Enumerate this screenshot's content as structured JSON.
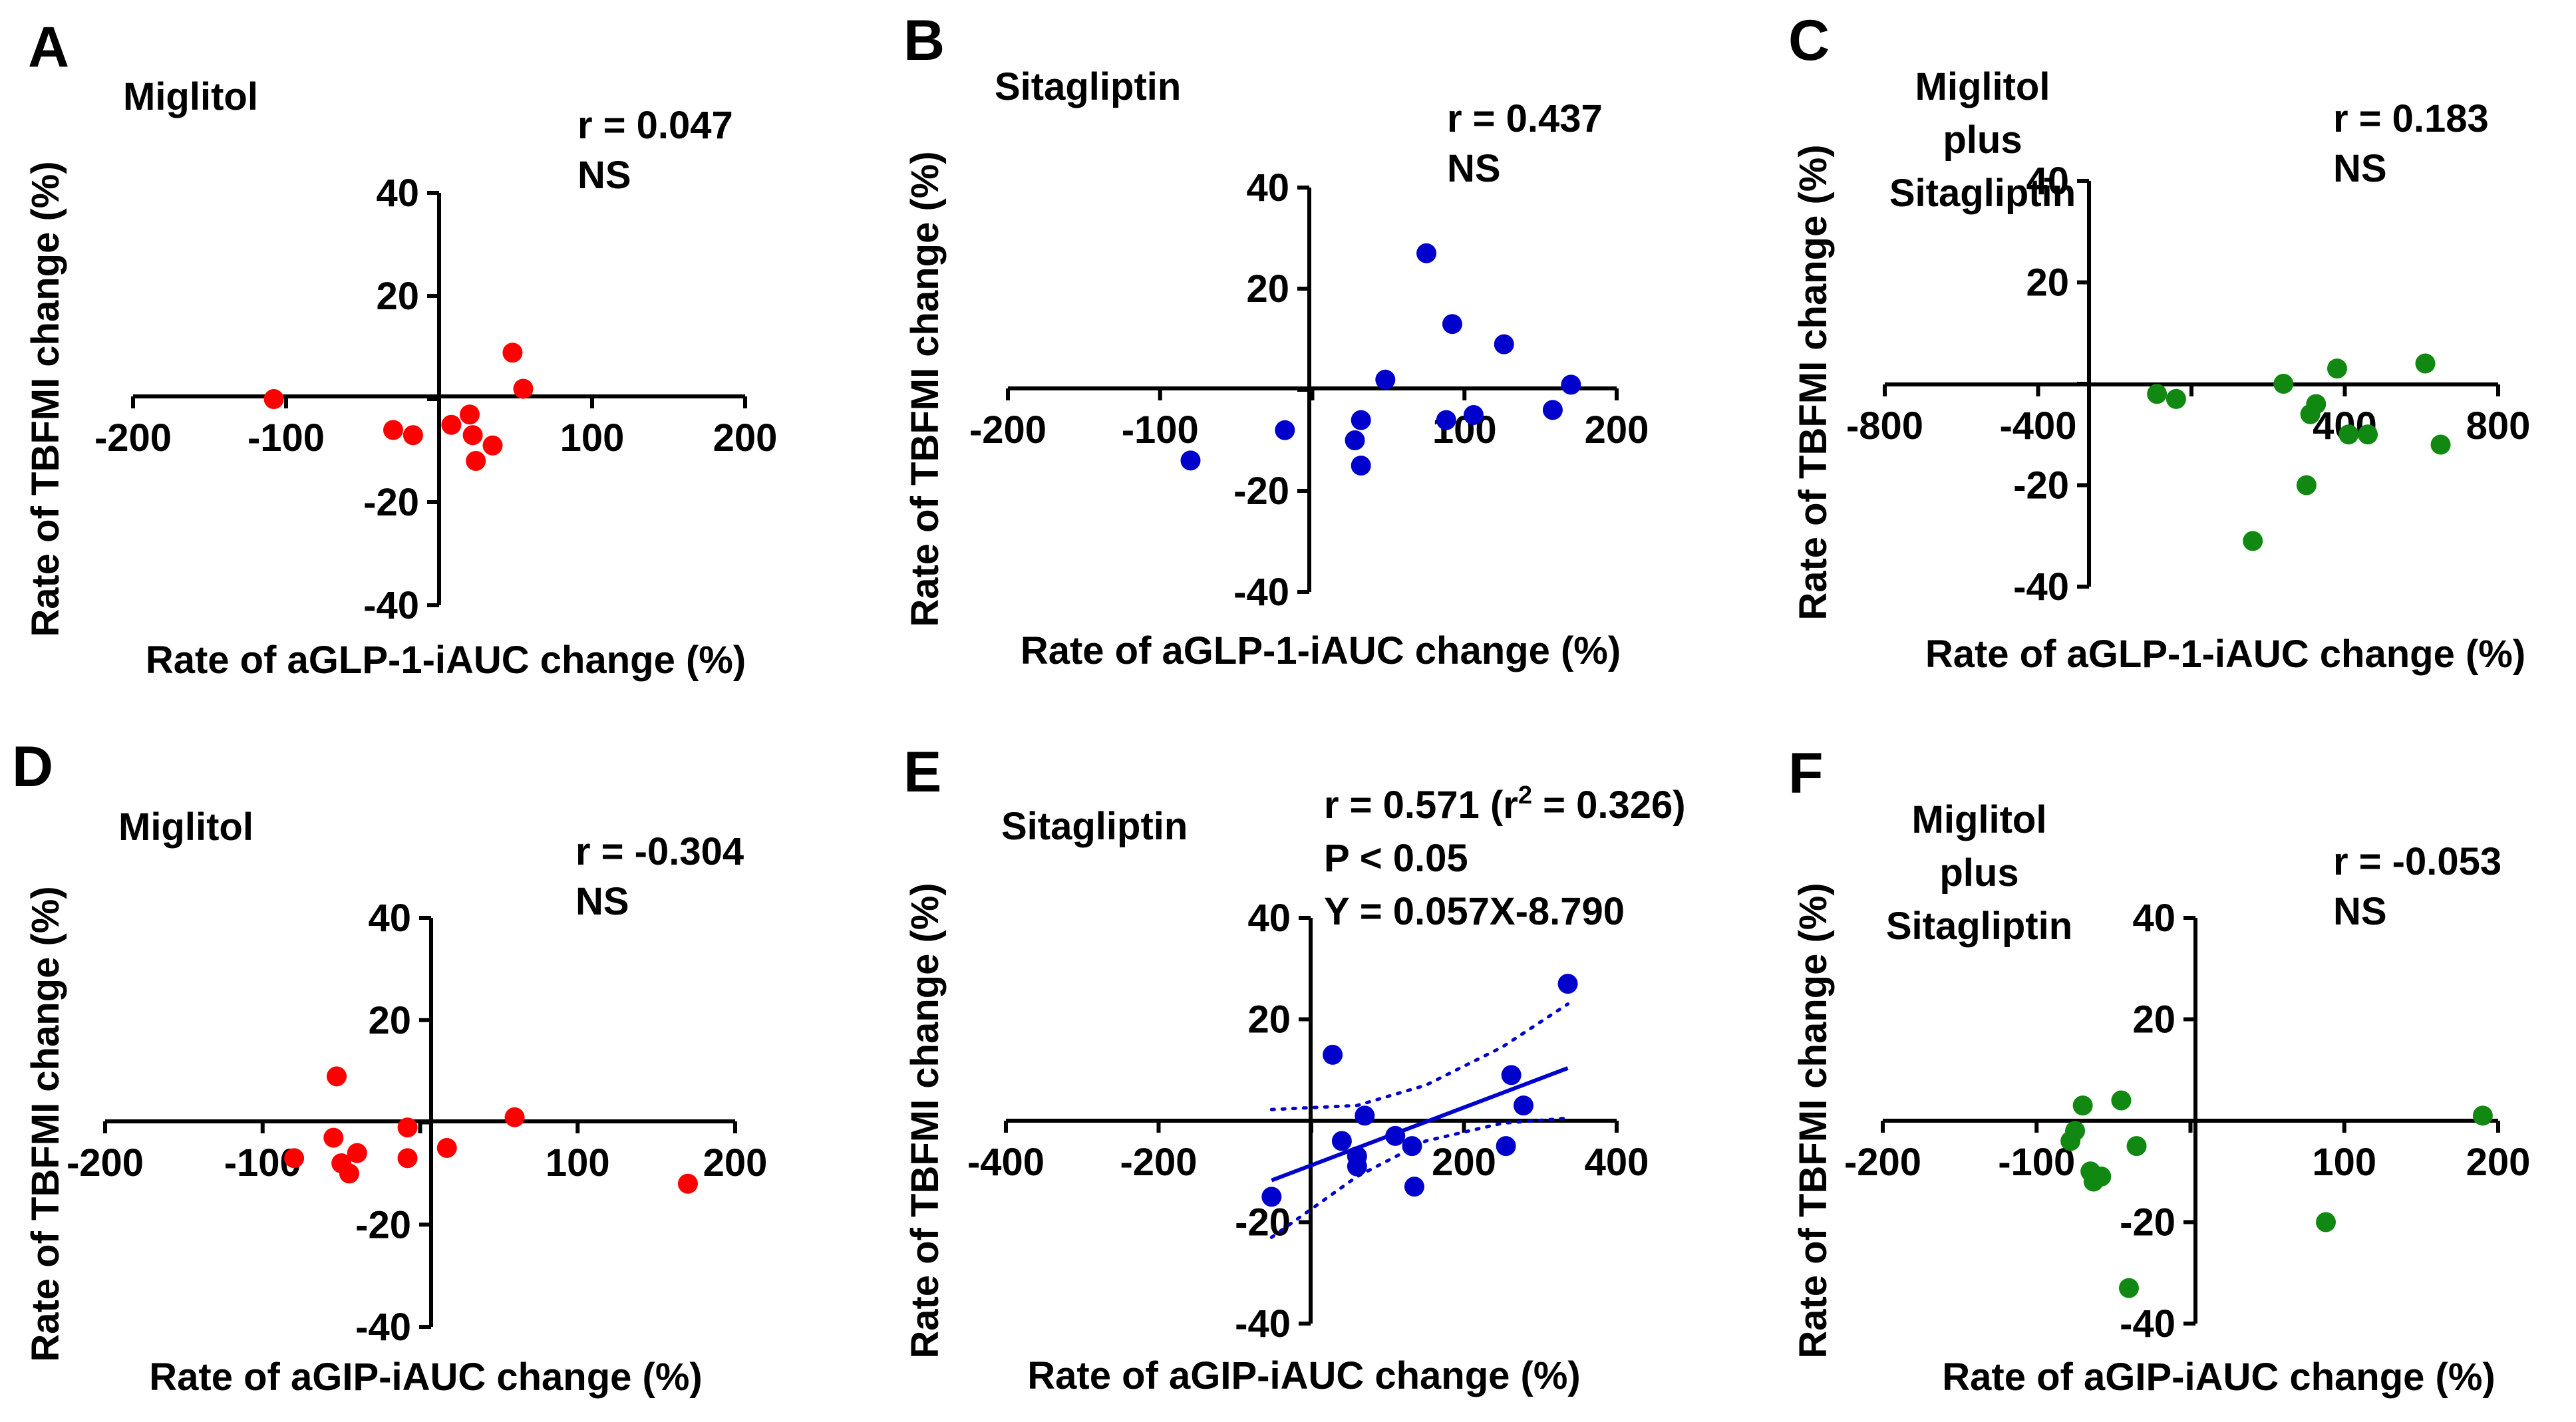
{
  "colors": {
    "red": "#ff0000",
    "blue": "#0000cc",
    "green": "#118811"
  },
  "chart_data": [
    {
      "panel": "A",
      "type": "scatter",
      "title": [
        "Miglitol"
      ],
      "xlabel": "Rate of aGLP-1-iAUC  change (%)",
      "ylabel": "Rate of TBFMI change (%)",
      "xlim": [
        -200,
        200
      ],
      "ylim": [
        -40,
        40
      ],
      "xticks": [
        -200,
        -100,
        100,
        200
      ],
      "xtick_labels": [
        "-200",
        "-100",
        "100",
        "200"
      ],
      "yticks": [
        -40,
        -20,
        20,
        40
      ],
      "ytick_labels": [
        "-40",
        "-20",
        "20",
        "40"
      ],
      "color": "red",
      "annotation": [
        "r = 0.047",
        "NS"
      ],
      "x": [
        -108,
        -30,
        -17,
        8,
        20,
        22,
        24,
        35,
        48,
        55
      ],
      "y": [
        0,
        -6,
        -7,
        -5,
        -3,
        -7,
        -12,
        -9,
        9,
        2
      ]
    },
    {
      "panel": "B",
      "type": "scatter",
      "title": [
        "Sitagliptin"
      ],
      "xlabel": "Rate of aGLP-1-iAUC  change (%)",
      "ylabel": "Rate of TBFMI change (%)",
      "xlim": [
        -200,
        200
      ],
      "ylim": [
        -40,
        40
      ],
      "xticks": [
        -200,
        -100,
        100,
        200
      ],
      "xtick_labels": [
        "-200",
        "-100",
        "100",
        "200"
      ],
      "yticks": [
        -40,
        -20,
        20,
        40
      ],
      "ytick_labels": [
        "-40",
        "-20",
        "20",
        "40"
      ],
      "color": "blue",
      "annotation": [
        "r = 0.437",
        "NS"
      ],
      "x": [
        -80,
        -18,
        28,
        32,
        32,
        48,
        75,
        88,
        92,
        106,
        126,
        158,
        170
      ],
      "y": [
        -14,
        -8,
        -10,
        -15,
        -6,
        2,
        27,
        -6,
        13,
        -5,
        9,
        -4,
        1
      ]
    },
    {
      "panel": "C",
      "type": "scatter",
      "title": [
        "Miglitol",
        "plus",
        "Sitagliptin"
      ],
      "xlabel": "Rate of aGLP-1-iAUC  change (%)",
      "ylabel": "Rate of TBFMI change (%)",
      "xlim": [
        -800,
        800
      ],
      "ylim": [
        -40,
        40
      ],
      "xticks": [
        -800,
        -400,
        400,
        800
      ],
      "xtick_labels": [
        "-800",
        "-400",
        "400",
        "800"
      ],
      "yticks": [
        -40,
        -20,
        20,
        40
      ],
      "ytick_labels": [
        "-40",
        "-20",
        "20",
        "40"
      ],
      "color": "green",
      "annotation": [
        "r = 0.183",
        "NS"
      ],
      "x": [
        -40,
        160,
        240,
        300,
        310,
        325,
        380,
        410,
        460,
        610,
        650,
        -90
      ],
      "y": [
        -3,
        -31,
        0,
        -20,
        -6,
        -4,
        3,
        -10,
        -10,
        4,
        -12,
        -2
      ]
    },
    {
      "panel": "D",
      "type": "scatter",
      "title": [
        "Miglitol"
      ],
      "xlabel": "Rate of aGIP-iAUC  change (%)",
      "ylabel": "Rate of TBFMI change (%)",
      "xlim": [
        -200,
        200
      ],
      "ylim": [
        -40,
        40
      ],
      "xticks": [
        -200,
        -100,
        100,
        200
      ],
      "xtick_labels": [
        "-200",
        "-100",
        "100",
        "200"
      ],
      "yticks": [
        -40,
        -20,
        20,
        40
      ],
      "ytick_labels": [
        "-40",
        "-20",
        "20",
        "40"
      ],
      "color": "red",
      "annotation": [
        "r = -0.304",
        "NS"
      ],
      "x": [
        -80,
        -55,
        -53,
        -50,
        -45,
        -40,
        -8,
        -8,
        17,
        60,
        170
      ],
      "y": [
        -7,
        -3,
        9,
        -8,
        -10,
        -6,
        -1,
        -7,
        -5,
        1,
        -12
      ]
    },
    {
      "panel": "E",
      "type": "scatter",
      "title": [
        "Sitagliptin"
      ],
      "xlabel": "Rate of aGIP-iAUC  change (%)",
      "ylabel": "Rate of TBFMI change (%)",
      "xlim": [
        -400,
        400
      ],
      "ylim": [
        -40,
        40
      ],
      "xticks": [
        -400,
        -200,
        200,
        400
      ],
      "xtick_labels": [
        "-400",
        "-200",
        "200",
        "400"
      ],
      "yticks": [
        -40,
        -20,
        20,
        40
      ],
      "ytick_labels": [
        "-40",
        "-20",
        "20",
        "40"
      ],
      "color": "blue",
      "annotation": [
        "r = 0.571",
        "P < 0.05",
        "Y = 0.057X-8.790"
      ],
      "annotation_r2": "(r",
      "annotation_r2_sup": "2",
      "annotation_r2_val": "= 0.326)",
      "x": [
        -52,
        28,
        40,
        60,
        60,
        70,
        110,
        132,
        135,
        255,
        262,
        278,
        336
      ],
      "y": [
        -15,
        13,
        -4,
        -7,
        -9,
        1,
        -3,
        -5,
        -13,
        -5,
        9,
        3,
        27
      ],
      "fit": {
        "slope": 0.057,
        "intercept": -8.79,
        "xrange": [
          -52,
          336
        ]
      },
      "ci_upper": {
        "x": [
          -52,
          60,
          150,
          250,
          336
        ],
        "y": [
          2.2,
          3.0,
          7.0,
          14.5,
          23.0
        ]
      },
      "ci_lower": {
        "x": [
          -52,
          60,
          150,
          250,
          336
        ],
        "y": [
          -23.0,
          -11.0,
          -4.0,
          -0.5,
          0.5
        ]
      }
    },
    {
      "panel": "F",
      "type": "scatter",
      "title": [
        "Miglitol",
        "plus",
        "Sitagliptin"
      ],
      "xlabel": "Rate of aGIP-iAUC  change (%)",
      "ylabel": "Rate of TBFMI change (%)",
      "xlim": [
        -200,
        200
      ],
      "ylim": [
        -40,
        40
      ],
      "xticks": [
        -200,
        -100,
        100,
        200
      ],
      "xtick_labels": [
        "-200",
        "-100",
        "100",
        "200"
      ],
      "yticks": [
        -40,
        -20,
        20,
        40
      ],
      "ytick_labels": [
        "-40",
        "-20",
        "20",
        "40"
      ],
      "color": "green",
      "annotation": [
        "r = -0.053",
        "NS"
      ],
      "x": [
        -78,
        -75,
        -70,
        -65,
        -63,
        -58,
        -45,
        -40,
        -35,
        88,
        190
      ],
      "y": [
        -4,
        -2,
        3,
        -10,
        -12,
        -11,
        4,
        -33,
        -5,
        -20,
        1
      ]
    }
  ]
}
